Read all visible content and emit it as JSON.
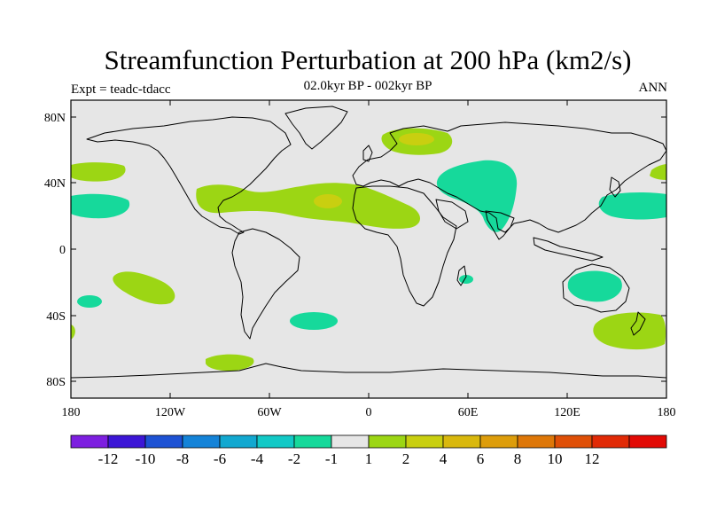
{
  "title": "Streamfunction Perturbation at 200 hPa (km2/s)",
  "subtitle": "02.0kyr BP - 002kyr BP",
  "left_label": "Expt = teadc-tdacc",
  "right_label": "ANN",
  "lat_ticks": [
    "80N",
    "40N",
    "0",
    "40S",
    "80S"
  ],
  "lon_ticks": [
    "180",
    "120W",
    "60W",
    "0",
    "60E",
    "120E",
    "180"
  ],
  "colorbar": {
    "colors": [
      "#7d1fe0",
      "#3c16d6",
      "#1d52d4",
      "#1483d8",
      "#12a8d0",
      "#12c9c6",
      "#16d99b",
      "#e6e6e6",
      "#9cd614",
      "#c9cf10",
      "#d9b80d",
      "#dd9d0b",
      "#de7708",
      "#df4f07",
      "#e12a06",
      "#e20a05"
    ],
    "labels": [
      "-12",
      "-10",
      "-8",
      "-6",
      "-4",
      "-2",
      "-1",
      "1",
      "2",
      "4",
      "6",
      "8",
      "10",
      "12"
    ]
  },
  "chart_data": {
    "type": "heatmap",
    "title": "Streamfunction Perturbation at 200 hPa (km2/s)",
    "subtitle": "02.0kyr BP - 002kyr BP",
    "x_range": [
      -180,
      180
    ],
    "y_range": [
      -90,
      90
    ],
    "levels": [
      -12,
      -10,
      -8,
      -6,
      -4,
      -2,
      -1,
      1,
      2,
      4,
      6,
      8,
      10,
      12
    ],
    "features": [
      {
        "level": "1 to 2",
        "lon": 20,
        "lat": 63,
        "lon_span": 40,
        "lat_span": 16
      },
      {
        "level": "2 to 4",
        "lon": 18,
        "lat": 67,
        "lon_span": 22,
        "lat_span": 8
      },
      {
        "level": "1 to 2",
        "lon": -165,
        "lat": 47,
        "lon_span": 30,
        "lat_span": 10
      },
      {
        "level": "-2 to -1",
        "lon": -162,
        "lat": 27,
        "lon_span": 36,
        "lat_span": 14
      },
      {
        "level": "1 to 2",
        "lon": -45,
        "lat": 32,
        "lon_span": 200,
        "lat_span": 26
      },
      {
        "level": "2 to 4",
        "lon": -24,
        "lat": 28,
        "lon_span": 14,
        "lat_span": 8
      },
      {
        "level": "-2 to -1",
        "lon": 55,
        "lat": 37,
        "lon_span": 75,
        "lat_span": 45
      },
      {
        "level": "-2 to -1",
        "lon": 155,
        "lat": 25,
        "lon_span": 45,
        "lat_span": 16
      },
      {
        "level": "1 to 2",
        "lon": 175,
        "lat": 47,
        "lon_span": 18,
        "lat_span": 8
      },
      {
        "level": "1 to 2",
        "lon": -135,
        "lat": -24,
        "lon_span": 40,
        "lat_span": 14
      },
      {
        "level": "-2 to -1",
        "lon": -168,
        "lat": -32,
        "lon_span": 14,
        "lat_span": 6
      },
      {
        "level": "1 to 2",
        "lon": -178,
        "lat": -50,
        "lon_span": 4,
        "lat_span": 8
      },
      {
        "level": "-2 to -1",
        "lon": -33,
        "lat": -44,
        "lon_span": 30,
        "lat_span": 10
      },
      {
        "level": "-2 to -1",
        "lon": 57,
        "lat": -18,
        "lon_span": 8,
        "lat_span": 5
      },
      {
        "level": "-2 to -1",
        "lon": 137,
        "lat": -22,
        "lon_span": 33,
        "lat_span": 18
      },
      {
        "level": "1 to 2",
        "lon": 157,
        "lat": -50,
        "lon_span": 45,
        "lat_span": 22
      },
      {
        "level": "1 to 2",
        "lon": -87,
        "lat": -68,
        "lon_span": 28,
        "lat_span": 10
      }
    ]
  }
}
